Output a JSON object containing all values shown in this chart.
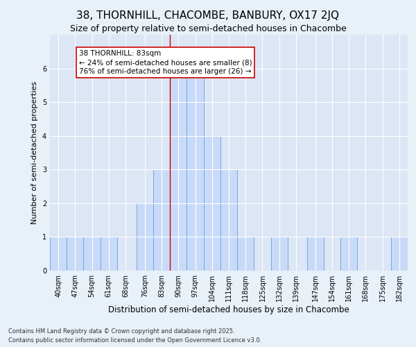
{
  "title": "38, THORNHILL, CHACOMBE, BANBURY, OX17 2JQ",
  "subtitle": "Size of property relative to semi-detached houses in Chacombe",
  "xlabel": "Distribution of semi-detached houses by size in Chacombe",
  "ylabel": "Number of semi-detached properties",
  "bins": [
    40,
    47,
    54,
    61,
    68,
    76,
    83,
    90,
    97,
    104,
    111,
    118,
    125,
    132,
    139,
    147,
    154,
    161,
    168,
    175,
    182
  ],
  "counts": [
    1,
    1,
    1,
    1,
    0,
    2,
    3,
    6,
    6,
    4,
    3,
    1,
    0,
    1,
    0,
    1,
    0,
    1,
    0,
    0,
    1
  ],
  "bar_color": "#c9daf8",
  "bar_edge_color": "#6fa8dc",
  "highlight_bin_index": 6,
  "highlight_line_color": "#cc0000",
  "background_color": "#e8f0f8",
  "plot_background_color": "#dce6f5",
  "annotation_text": "38 THORNHILL: 83sqm\n← 24% of semi-detached houses are smaller (8)\n76% of semi-detached houses are larger (26) →",
  "annotation_box_color": "white",
  "annotation_box_edge_color": "#cc0000",
  "footer_text": "Contains HM Land Registry data © Crown copyright and database right 2025.\nContains public sector information licensed under the Open Government Licence v3.0.",
  "ylim": [
    0,
    7
  ],
  "yticks": [
    0,
    1,
    2,
    3,
    4,
    5,
    6,
    7
  ],
  "title_fontsize": 11,
  "subtitle_fontsize": 9,
  "xlabel_fontsize": 8.5,
  "ylabel_fontsize": 8,
  "tick_fontsize": 7,
  "annotation_fontsize": 7.5,
  "footer_fontsize": 6
}
